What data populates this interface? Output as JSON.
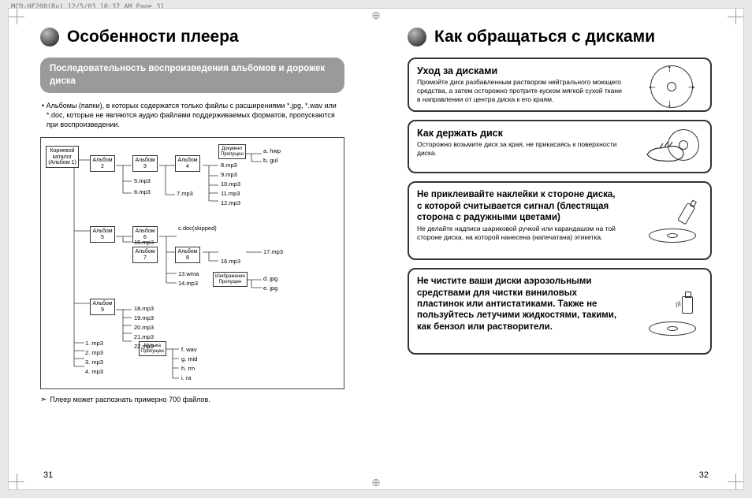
{
  "meta": {
    "header": "MCD-HF200(Ru)  12/5/03  10:37 AM  Page 31"
  },
  "left": {
    "title": "Особенности плеера",
    "subsection": "Последовательность воспроизведения альбомов и дорожек диска",
    "bullet": "• Альбомы (папки), в которых содержатся только файлы с расширениями *.jpg, *.wav или *.doc, которые не являются аудио файлами поддерживаемых форматов, пропускаются при воспроизведении.",
    "tree": {
      "nodes": {
        "root": "Корневой\nкаталог\n(Альбом 1)",
        "a2": "Альбом\n2",
        "a3": "Альбом\n3",
        "a4": "Альбом\n4",
        "a5": "Альбом\n5",
        "a6": "Альбом\n6",
        "a7": "Альбом\n7",
        "a8": "Альбом\n8",
        "a9": "Альбом\n9",
        "doc": "Документ\nПропущен",
        "img": "Изображения\nПропущен",
        "mus": "Музыка\nПропущен"
      },
      "leaves": {
        "l1": "a. hwp",
        "l2": "b. gul",
        "l3": "8.mp3",
        "l4": "9.mp3",
        "l5": "10.mp3",
        "l6": "11.mp3",
        "l7": "12.mp3",
        "l8": "5.mp3",
        "l9": "6.mp3",
        "l10": "7.mp3",
        "l11": "c.doc(skipped)",
        "l12": "15.mp3",
        "l13": "17.mp3",
        "l14": "16.mp3",
        "l15": "13.wma",
        "l16": "14.mp3",
        "l17": "d. jpg",
        "l18": "e. jpg",
        "l19": "18.mp3",
        "l20": "19.mp3",
        "l21": "20.mp3",
        "l22": "21.mp3",
        "l23": "22.mp3",
        "l24": "1. mp3",
        "l25": "2. mp3",
        "l26": "3. mp3",
        "l27": "4. mp3",
        "l28": "f. wav",
        "l29": "g. mid",
        "l30": "h. rm",
        "l31": "i. ra"
      }
    },
    "footnote": "Плеер может распознать примерно 700 файлов.",
    "pagenum": "31"
  },
  "right": {
    "title": "Как обращаться с дисками",
    "boxes": {
      "b1": {
        "title": "Уход за дисками",
        "txt": "Промойте диск разбавленным раствором нейтрального моющего средства, а затем осторожно протрите куском мягкой сухой ткани в направлении от центра диска к его краям."
      },
      "b2": {
        "title": "Как держать диск",
        "txt": "Осторожно возьмите диск за края, не прикасаясь к поверхности диска."
      },
      "b3": {
        "title": "Не приклеивайте наклейки к стороне диска, с которой считывается сигнал (блестящая сторона с радужными цветами)",
        "txt": "Не делайте надписи шариковой ручкой или карандашом на той стороне диска, на которой нанесена (напечатана) этикетка."
      },
      "b4": {
        "title": "Не чистите ваши диски аэрозольными средствами для чистки виниловых пластинок или антистатиками. Также не пользуйтесь летучими жидкостями, такими, как бензол или растворители.",
        "txt": ""
      }
    },
    "pagenum": "32"
  }
}
